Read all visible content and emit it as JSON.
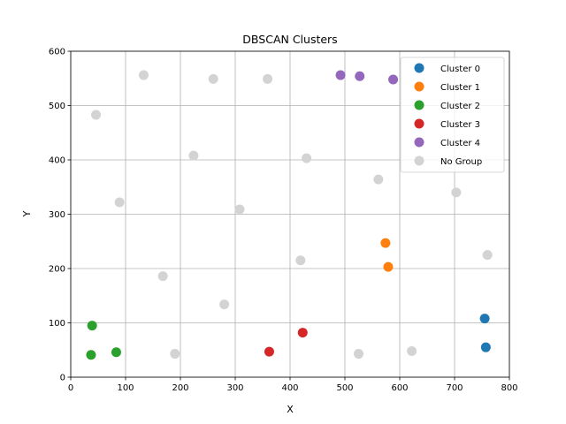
{
  "chart_data": {
    "type": "scatter",
    "title": "DBSCAN Clusters",
    "xlabel": "X",
    "ylabel": "Y",
    "xlim": [
      0,
      800
    ],
    "ylim": [
      0,
      600
    ],
    "xticks": [
      0,
      100,
      200,
      300,
      400,
      500,
      600,
      700,
      800
    ],
    "yticks": [
      0,
      100,
      200,
      300,
      400,
      500,
      600
    ],
    "grid": true,
    "legend_position": "top-right",
    "series": [
      {
        "name": "Cluster 0",
        "color": "#1f77b4",
        "points": [
          [
            755,
            108
          ],
          [
            757,
            55
          ]
        ]
      },
      {
        "name": "Cluster 1",
        "color": "#ff7f0e",
        "points": [
          [
            574,
            247
          ],
          [
            579,
            203
          ]
        ]
      },
      {
        "name": "Cluster 2",
        "color": "#2ca02c",
        "points": [
          [
            39,
            95
          ],
          [
            37,
            41
          ],
          [
            83,
            46
          ]
        ]
      },
      {
        "name": "Cluster 3",
        "color": "#d62728",
        "points": [
          [
            362,
            47
          ],
          [
            423,
            82
          ]
        ]
      },
      {
        "name": "Cluster 4",
        "color": "#9467bd",
        "points": [
          [
            492,
            556
          ],
          [
            527,
            554
          ],
          [
            588,
            548
          ]
        ]
      },
      {
        "name": "No Group",
        "color": "#d3d3d3",
        "points": [
          [
            133,
            556
          ],
          [
            260,
            549
          ],
          [
            359,
            549
          ],
          [
            46,
            483
          ],
          [
            224,
            408
          ],
          [
            430,
            403
          ],
          [
            561,
            364
          ],
          [
            703,
            340
          ],
          [
            89,
            322
          ],
          [
            308,
            309
          ],
          [
            419,
            215
          ],
          [
            760,
            225
          ],
          [
            168,
            186
          ],
          [
            280,
            134
          ],
          [
            190,
            43
          ],
          [
            525,
            43
          ],
          [
            622,
            48
          ]
        ]
      }
    ]
  }
}
